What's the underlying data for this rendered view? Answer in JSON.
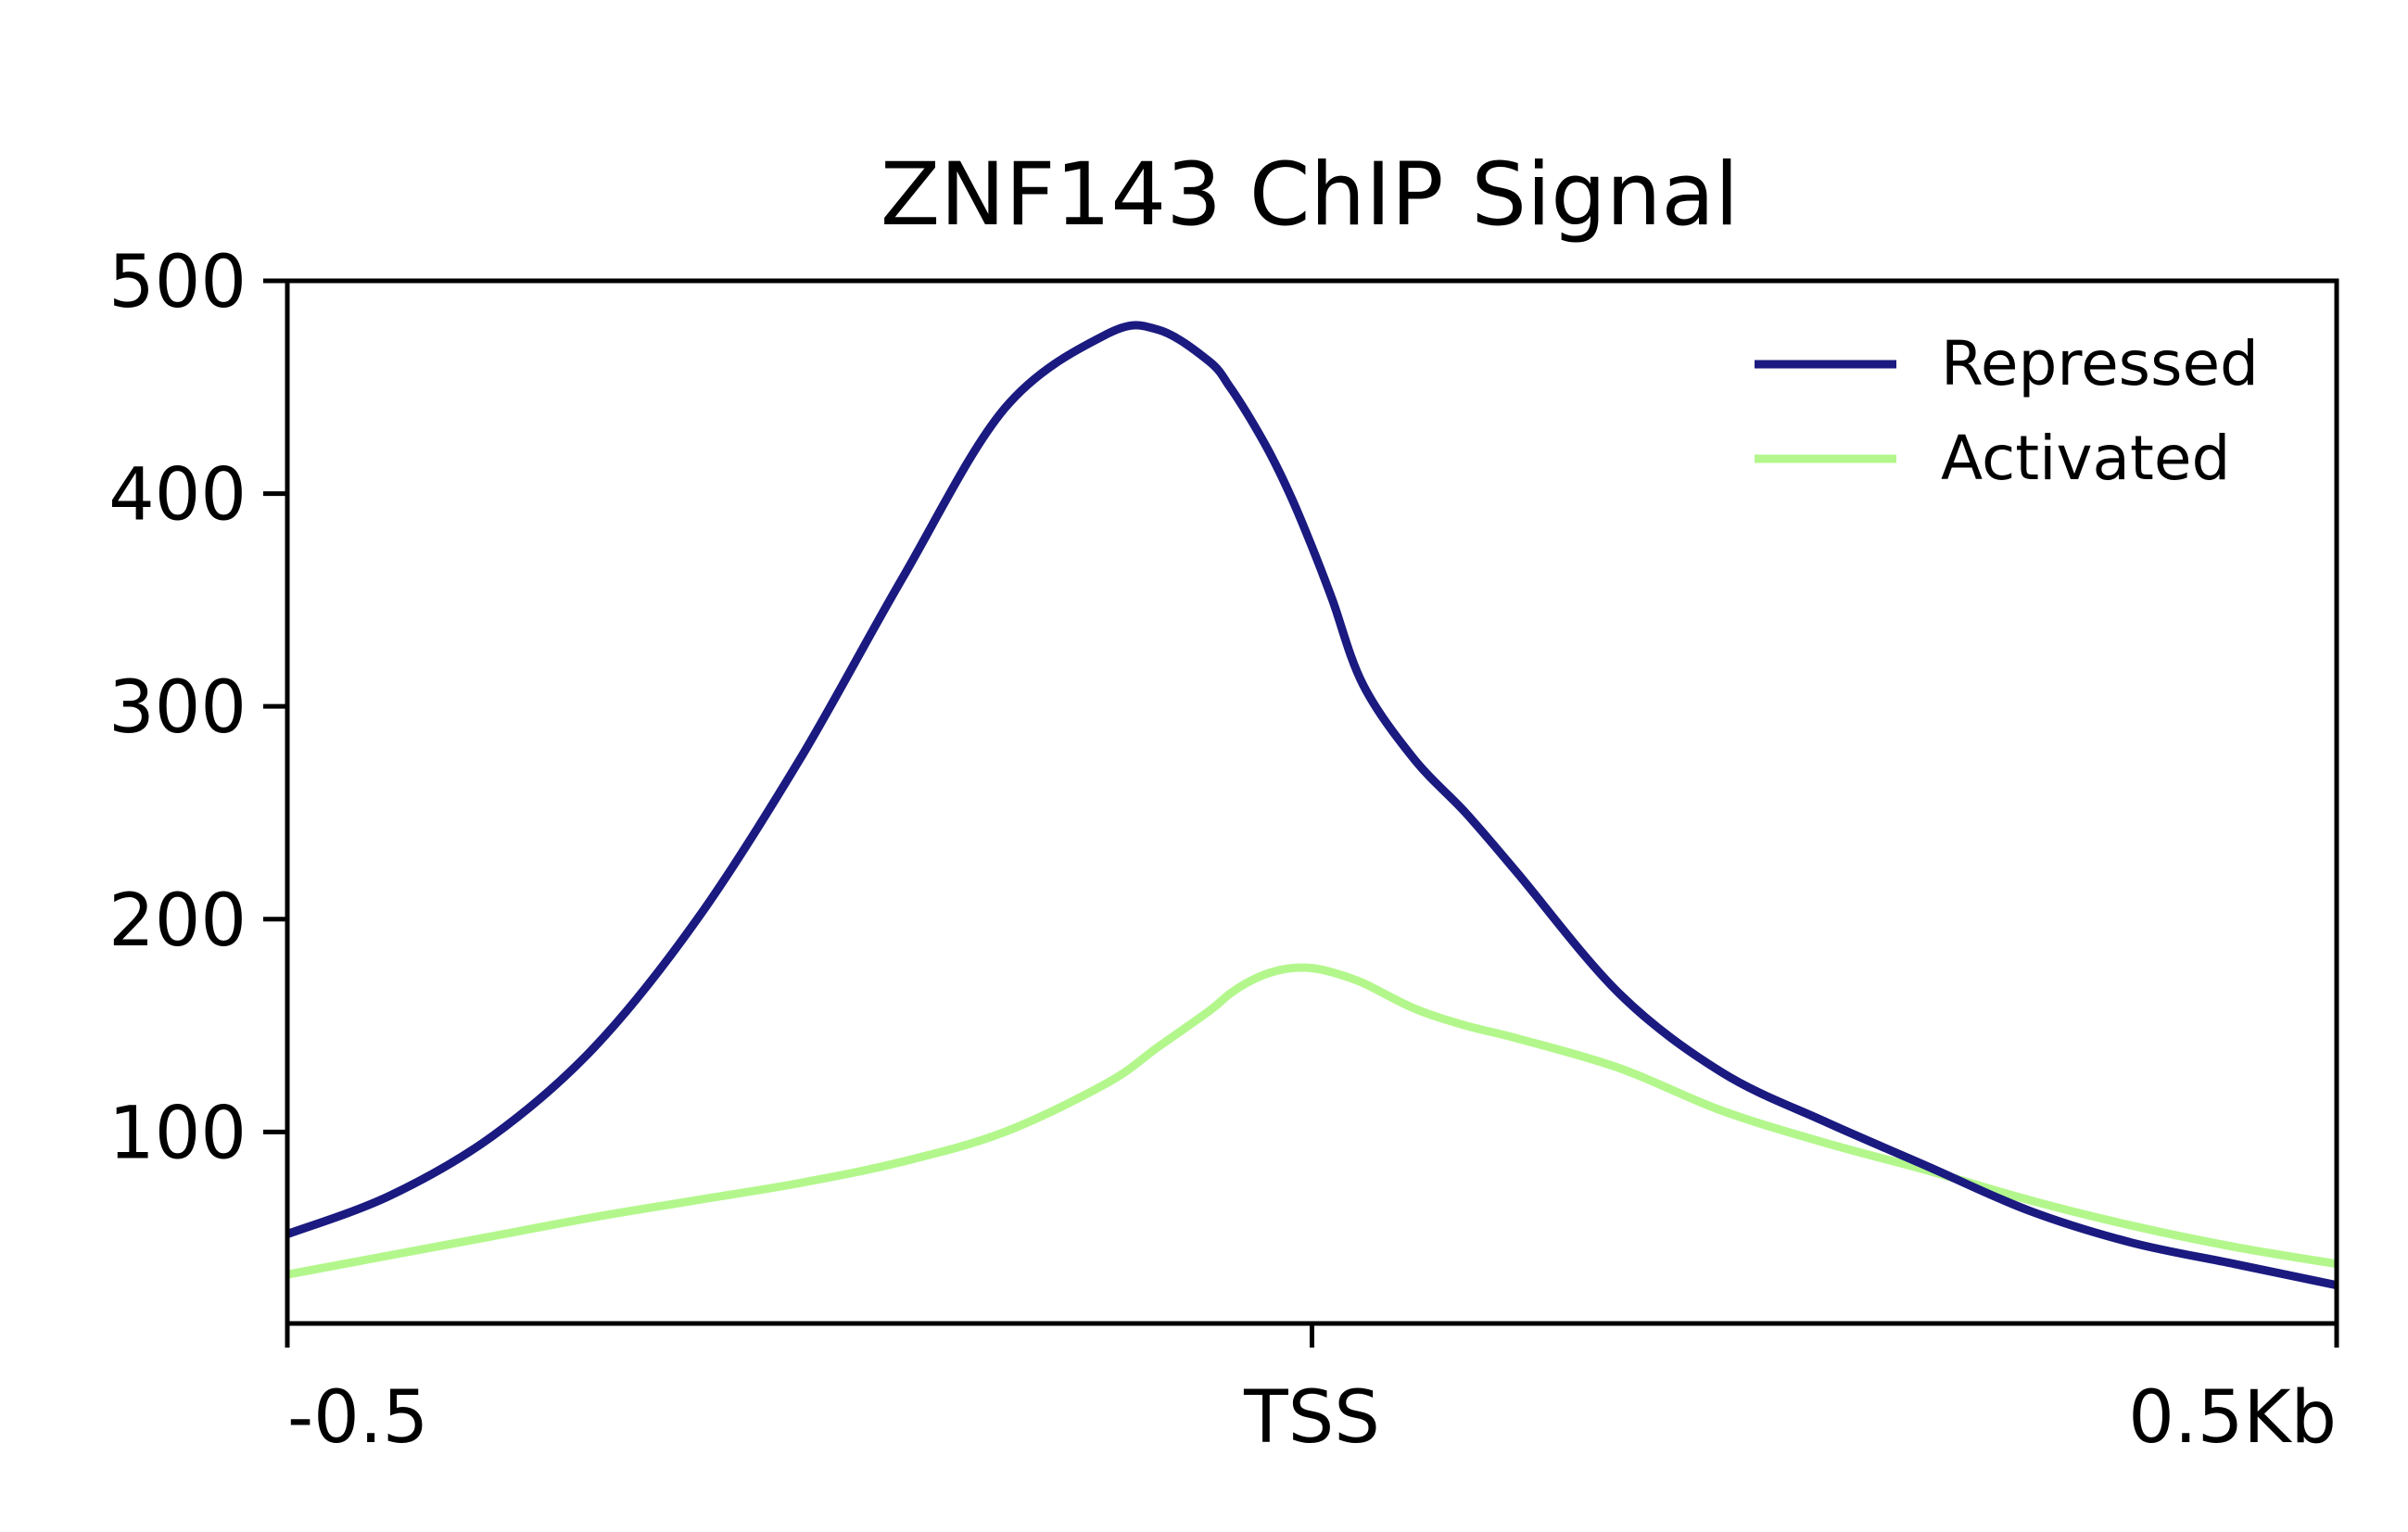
{
  "chart_data": {
    "type": "line",
    "title": "ZNF143 ChIP Signal",
    "xlabel": "",
    "ylabel": "",
    "x_tick_labels": [
      "-0.5",
      "TSS",
      "0.5Kb"
    ],
    "x_tick_positions": [
      -0.5,
      0,
      0.5
    ],
    "xlim": [
      -0.5,
      0.5
    ],
    "ylim": [
      10,
      500
    ],
    "y_ticks": [
      100,
      200,
      300,
      400,
      500
    ],
    "grid": false,
    "legend_position": "top-right",
    "x": [
      -0.5,
      -0.45,
      -0.4,
      -0.35,
      -0.3,
      -0.25,
      -0.2,
      -0.15,
      -0.1,
      -0.075,
      -0.05,
      -0.04,
      -0.03,
      -0.02,
      -0.01,
      0,
      0.01,
      0.025,
      0.05,
      0.075,
      0.1,
      0.15,
      0.2,
      0.25,
      0.3,
      0.35,
      0.4,
      0.45,
      0.5
    ],
    "series": [
      {
        "name": "Repressed",
        "color": "#1a1a80",
        "values": [
          52,
          70,
          98,
          140,
          200,
          275,
          360,
          440,
          475,
          477,
          462,
          450,
          435,
          418,
          398,
          375,
          350,
          310,
          275,
          250,
          222,
          165,
          128,
          105,
          84,
          63,
          48,
          38,
          28
        ]
      },
      {
        "name": "Activated",
        "color": "#b3f78c",
        "values": [
          33,
          42,
          51,
          60,
          68,
          76,
          86,
          100,
          123,
          140,
          157,
          165,
          171,
          175,
          177,
          177,
          175,
          170,
          158,
          150,
          144,
          130,
          110,
          95,
          82,
          68,
          56,
          46,
          38
        ]
      }
    ]
  }
}
